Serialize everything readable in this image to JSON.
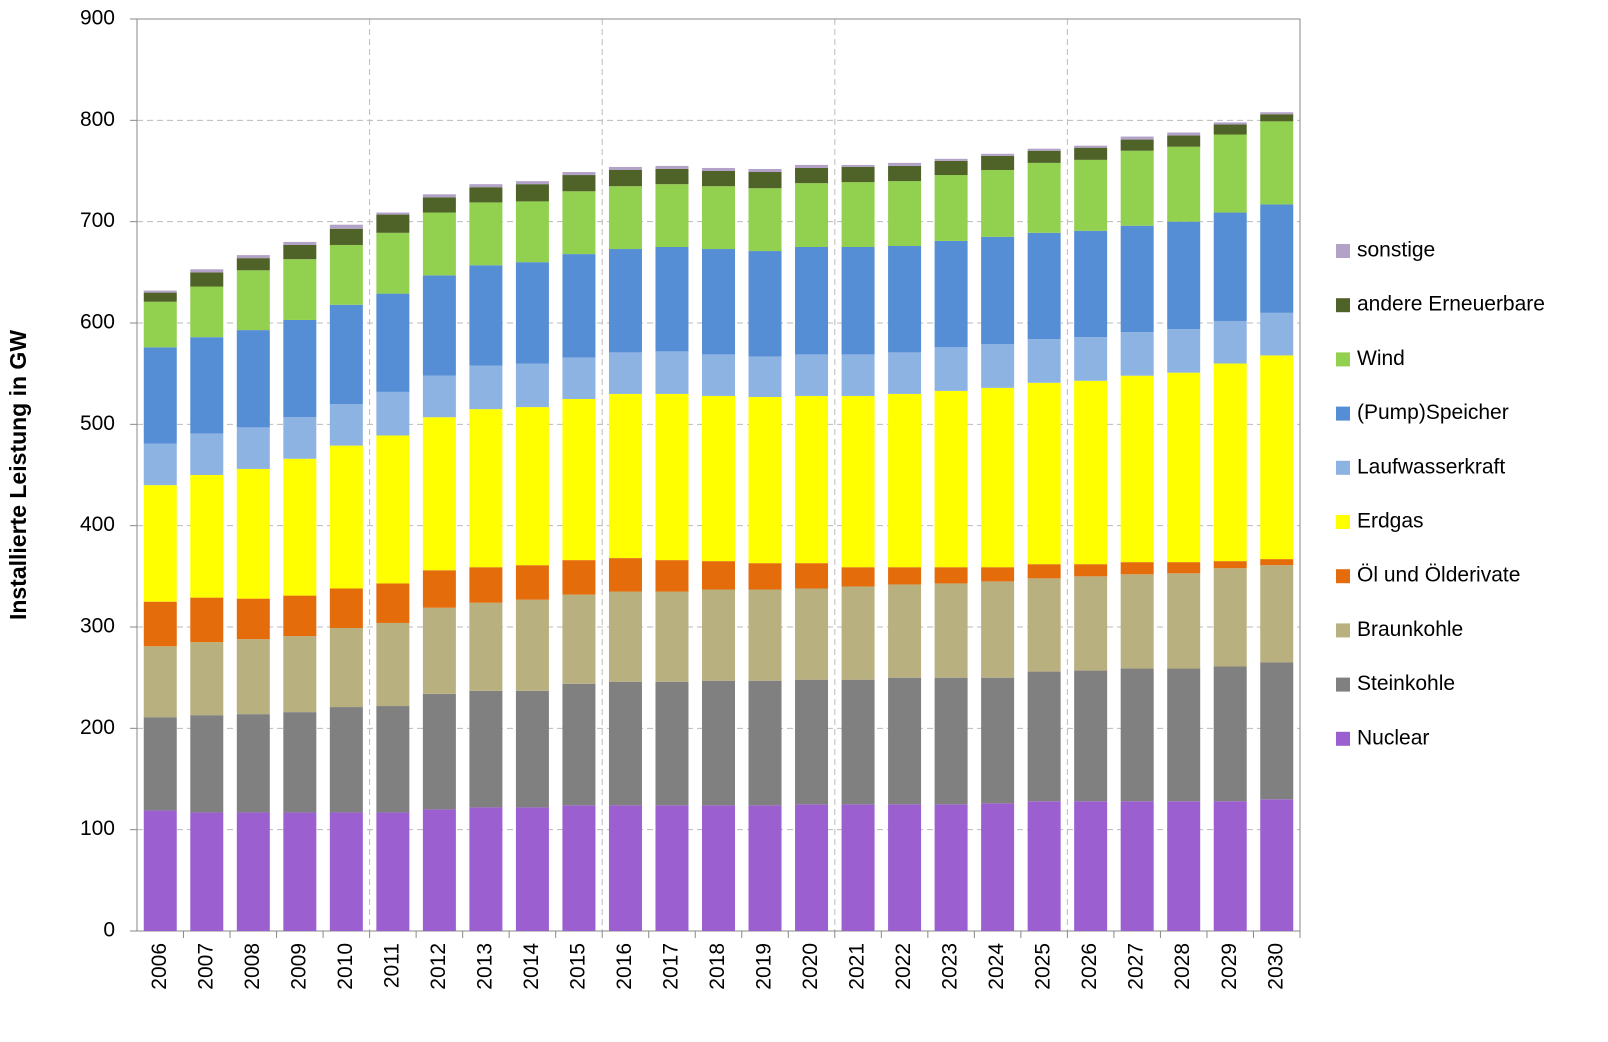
{
  "chart_data": {
    "type": "stacked_bar",
    "y_label": "Installierte Leistung in GW",
    "categories": [
      "2006",
      "2007",
      "2008",
      "2009",
      "2010",
      "2011",
      "2012",
      "2013",
      "2014",
      "2015",
      "2016",
      "2017",
      "2018",
      "2019",
      "2020",
      "2021",
      "2022",
      "2023",
      "2024",
      "2025",
      "2026",
      "2027",
      "2028",
      "2029",
      "2030"
    ],
    "series": [
      {
        "name": "Nuclear",
        "color": "#9b5fd0",
        "values": [
          119,
          117,
          117,
          117,
          117,
          117,
          120,
          122,
          122,
          124,
          124,
          124,
          124,
          124,
          125,
          125,
          125,
          125,
          126,
          128,
          128,
          128,
          128,
          128,
          130
        ]
      },
      {
        "name": "Steinkohle",
        "color": "#808080",
        "values": [
          92,
          96,
          97,
          99,
          104,
          105,
          114,
          115,
          115,
          120,
          122,
          122,
          123,
          123,
          123,
          123,
          125,
          125,
          124,
          128,
          129,
          131,
          131,
          133,
          135
        ]
      },
      {
        "name": "Braunkohle",
        "color": "#b8b07f",
        "values": [
          70,
          72,
          74,
          75,
          78,
          82,
          85,
          87,
          90,
          88,
          89,
          89,
          90,
          90,
          90,
          92,
          92,
          93,
          95,
          92,
          93,
          93,
          94,
          97,
          96
        ]
      },
      {
        "name": "Öl und Ölderivate",
        "color": "#e46c0a",
        "values": [
          44,
          44,
          40,
          40,
          39,
          39,
          37,
          35,
          34,
          34,
          33,
          31,
          28,
          26,
          25,
          19,
          17,
          16,
          14,
          14,
          12,
          12,
          11,
          7,
          6
        ]
      },
      {
        "name": "Erdgas",
        "color": "#ffff00",
        "values": [
          115,
          121,
          128,
          135,
          141,
          146,
          151,
          156,
          156,
          159,
          162,
          164,
          163,
          164,
          165,
          169,
          171,
          174,
          177,
          179,
          181,
          184,
          187,
          195,
          201
        ]
      },
      {
        "name": "Laufwasserkraft",
        "color": "#8db3e2",
        "values": [
          41,
          41,
          41,
          41,
          41,
          43,
          41,
          43,
          43,
          41,
          41,
          42,
          41,
          40,
          41,
          41,
          41,
          43,
          43,
          43,
          43,
          43,
          43,
          42,
          42
        ]
      },
      {
        "name": "(Pump)Speicher",
        "color": "#558ed5",
        "values": [
          95,
          95,
          96,
          96,
          98,
          97,
          99,
          99,
          100,
          102,
          102,
          103,
          104,
          104,
          106,
          106,
          105,
          105,
          106,
          105,
          105,
          105,
          106,
          107,
          107
        ]
      },
      {
        "name": "Wind",
        "color": "#92d050",
        "values": [
          45,
          50,
          59,
          60,
          59,
          60,
          62,
          62,
          60,
          62,
          62,
          62,
          62,
          62,
          63,
          64,
          64,
          65,
          66,
          69,
          70,
          74,
          74,
          77,
          82
        ]
      },
      {
        "name": "andere Erneuerbare",
        "color": "#4f6228",
        "values": [
          9,
          14,
          12,
          14,
          16,
          18,
          15,
          15,
          17,
          16,
          16,
          15,
          15,
          16,
          15,
          15,
          15,
          14,
          14,
          12,
          12,
          11,
          11,
          10,
          7
        ]
      },
      {
        "name": "sonstige",
        "color": "#b3a2c7",
        "values": [
          2,
          3,
          3,
          3,
          4,
          2,
          3,
          3,
          3,
          3,
          3,
          3,
          3,
          3,
          3,
          2,
          3,
          2,
          2,
          2,
          2,
          3,
          3,
          2,
          2
        ]
      }
    ],
    "ylim": [
      0,
      900
    ],
    "yticks": [
      0,
      100,
      200,
      300,
      400,
      500,
      600,
      700,
      800,
      900
    ],
    "grid": true
  }
}
